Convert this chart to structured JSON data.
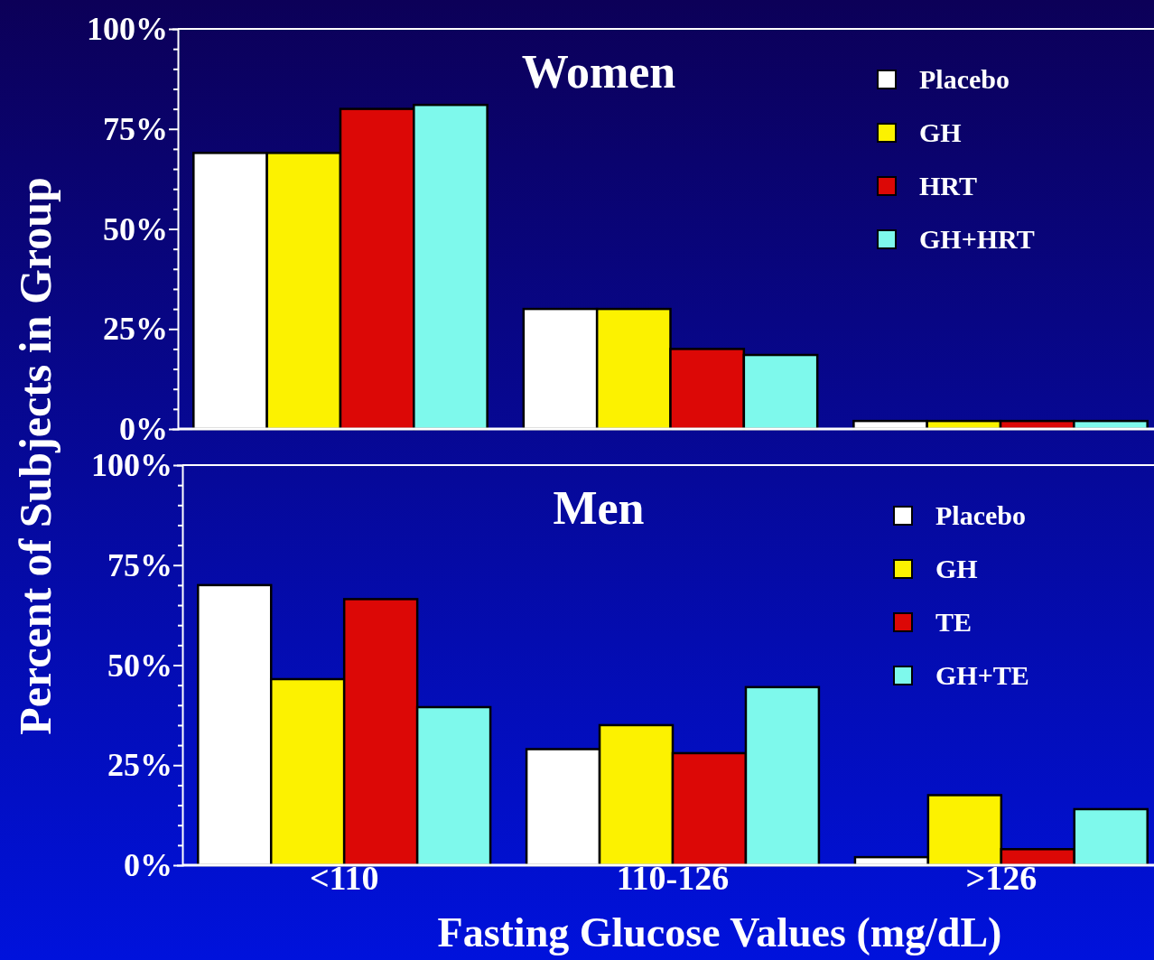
{
  "chart_data": [
    {
      "type": "bar",
      "title": "Women",
      "ylabel": "Percent of Subjects in Group",
      "categories": [
        null,
        null,
        null
      ],
      "series": [
        {
          "name": "Placebo",
          "color": "#ffffff",
          "values": [
            69,
            30,
            2
          ]
        },
        {
          "name": "GH",
          "color": "#fcf200",
          "values": [
            69,
            30,
            2
          ]
        },
        {
          "name": "HRT",
          "color": "#dc0806",
          "values": [
            80,
            20,
            2
          ]
        },
        {
          "name": "GH+HRT",
          "color": "#7ef9ec",
          "values": [
            81,
            18.5,
            2
          ]
        }
      ],
      "ylim": [
        0,
        100
      ],
      "yticks": [
        {
          "value": 0,
          "label": "0%"
        },
        {
          "value": 5,
          "label": null
        },
        {
          "value": 10,
          "label": null
        },
        {
          "value": 15,
          "label": null
        },
        {
          "value": 20,
          "label": null
        },
        {
          "value": 25,
          "label": "25%"
        },
        {
          "value": 30,
          "label": null
        },
        {
          "value": 35,
          "label": null
        },
        {
          "value": 40,
          "label": null
        },
        {
          "value": 45,
          "label": null
        },
        {
          "value": 50,
          "label": "50%"
        },
        {
          "value": 55,
          "label": null
        },
        {
          "value": 60,
          "label": null
        },
        {
          "value": 65,
          "label": null
        },
        {
          "value": 70,
          "label": null
        },
        {
          "value": 75,
          "label": "75%"
        },
        {
          "value": 80,
          "label": null
        },
        {
          "value": 85,
          "label": null
        },
        {
          "value": 90,
          "label": null
        },
        {
          "value": 95,
          "label": null
        },
        {
          "value": 100,
          "label": "100%"
        }
      ],
      "tick_labels": "y",
      "legend": "top right",
      "grid": false
    },
    {
      "type": "bar",
      "title": "Men",
      "xlabel": "Fasting Glucose Values (mg/dL)",
      "categories": [
        "<110",
        "110-126",
        ">126"
      ],
      "series": [
        {
          "name": "Placebo",
          "color": "#ffffff",
          "values": [
            70,
            29,
            2
          ]
        },
        {
          "name": "GH",
          "color": "#fcf200",
          "values": [
            46.5,
            35,
            17.5
          ]
        },
        {
          "name": "TE",
          "color": "#dc0806",
          "values": [
            66.5,
            28,
            4
          ]
        },
        {
          "name": "GH+TE",
          "color": "#7ef9ec",
          "values": [
            39.5,
            44.5,
            14
          ]
        }
      ],
      "ylim": [
        0,
        100
      ],
      "yticks": [
        {
          "value": 0,
          "label": "0%"
        },
        {
          "value": 5,
          "label": null
        },
        {
          "value": 10,
          "label": null
        },
        {
          "value": 15,
          "label": null
        },
        {
          "value": 20,
          "label": null
        },
        {
          "value": 25,
          "label": "25%"
        },
        {
          "value": 30,
          "label": null
        },
        {
          "value": 35,
          "label": null
        },
        {
          "value": 40,
          "label": null
        },
        {
          "value": 45,
          "label": null
        },
        {
          "value": 50,
          "label": "50%"
        },
        {
          "value": 55,
          "label": null
        },
        {
          "value": 60,
          "label": null
        },
        {
          "value": 65,
          "label": null
        },
        {
          "value": 70,
          "label": null
        },
        {
          "value": 75,
          "label": "75%"
        },
        {
          "value": 80,
          "label": null
        },
        {
          "value": 85,
          "label": null
        },
        {
          "value": 90,
          "label": null
        },
        {
          "value": 95,
          "label": null
        },
        {
          "value": 100,
          "label": "100%"
        }
      ],
      "legend": "top right",
      "grid": false
    }
  ]
}
